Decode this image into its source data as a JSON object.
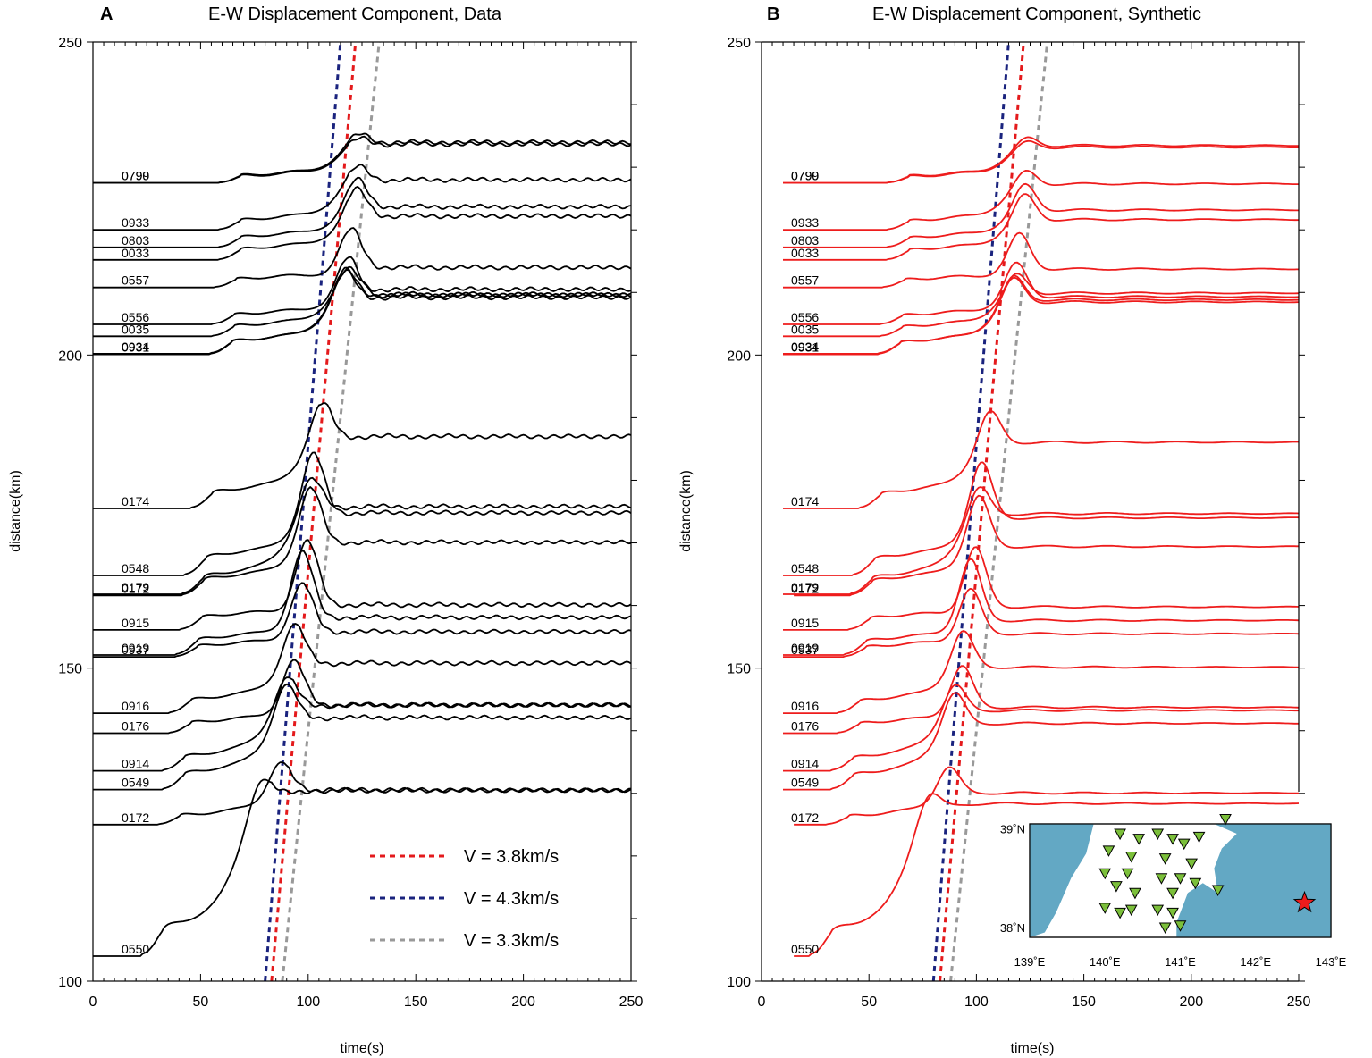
{
  "panels": [
    {
      "id": "A",
      "letter": "A",
      "title": "E-W Displacement Component, Data",
      "xlabel": "time(s)",
      "ylabel": "distance(km)",
      "trace_color": "#000000",
      "show_legend": true,
      "show_map": false
    },
    {
      "id": "B",
      "letter": "B",
      "title": "E-W Displacement Component, Synthetic",
      "xlabel": "time(s)",
      "ylabel": "distance(km)",
      "trace_color": "#ee1c1c",
      "show_legend": false,
      "show_map": true
    }
  ],
  "chart_data": {
    "type": "line",
    "xlim": [
      0,
      250
    ],
    "ylim": [
      100,
      250
    ],
    "xticks": [
      "0",
      "50",
      "100",
      "150",
      "200",
      "250"
    ],
    "yticks": [
      "100",
      "150",
      "200",
      "250"
    ],
    "grid": false,
    "stations": [
      {
        "label": "0790",
        "dist": 227.5,
        "arrival": 58,
        "amp": 8.5,
        "final": 6.5
      },
      {
        "label": "0799",
        "dist": 227.5,
        "arrival": 58,
        "amp": 7.8,
        "final": 6.2
      },
      {
        "label": "0933",
        "dist": 220.0,
        "arrival": 58,
        "amp": 11.0,
        "final": 8.0
      },
      {
        "label": "0803",
        "dist": 217.2,
        "arrival": 58,
        "amp": 11.5,
        "final": 6.5
      },
      {
        "label": "0033",
        "dist": 215.2,
        "arrival": 58,
        "amp": 12.0,
        "final": 7.0
      },
      {
        "label": "0557",
        "dist": 210.8,
        "arrival": 56,
        "amp": 9.5,
        "final": 3.2
      },
      {
        "label": "0556",
        "dist": 204.9,
        "arrival": 55,
        "amp": 11.0,
        "final": 4.8
      },
      {
        "label": "0035",
        "dist": 203.0,
        "arrival": 55,
        "amp": 11.5,
        "final": 7.5
      },
      {
        "label": "0934",
        "dist": 200.2,
        "arrival": 54,
        "amp": 14.0,
        "final": 9.0
      },
      {
        "label": "0931",
        "dist": 200.1,
        "arrival": 54,
        "amp": 14.5,
        "final": 9.5
      },
      {
        "label": "0174",
        "dist": 175.5,
        "arrival": 45,
        "amp": 18.0,
        "final": 11.5
      },
      {
        "label": "0548",
        "dist": 164.8,
        "arrival": 42,
        "amp": 20.5,
        "final": 10.0
      },
      {
        "label": "0179",
        "dist": 161.8,
        "arrival": 41,
        "amp": 20.0,
        "final": 14.0
      },
      {
        "label": "0172",
        "dist": 161.6,
        "arrival": 41,
        "amp": 18.0,
        "final": 8.5
      },
      {
        "label": "0915",
        "dist": 156.1,
        "arrival": 40,
        "amp": 14.5,
        "final": 4.0
      },
      {
        "label": "0919",
        "dist": 152.1,
        "arrival": 38,
        "amp": 17.0,
        "final": 6.0
      },
      {
        "label": "0937",
        "dist": 151.8,
        "arrival": 38,
        "amp": 12.0,
        "final": 4.0
      },
      {
        "label": "0916",
        "dist": 142.8,
        "arrival": 35,
        "amp": 15.0,
        "final": 8.0
      },
      {
        "label": "0176",
        "dist": 139.6,
        "arrival": 35,
        "amp": 12.0,
        "final": 4.5
      },
      {
        "label": "0914",
        "dist": 133.6,
        "arrival": 32,
        "amp": 16.0,
        "final": 10.5
      },
      {
        "label": "0549",
        "dist": 130.6,
        "arrival": 32,
        "amp": 18.0,
        "final": 11.5
      },
      {
        "label": "0172",
        "dist": 125.0,
        "arrival": 30,
        "amp": 10.5,
        "final": 5.5
      },
      {
        "label": "0550",
        "dist": 104.0,
        "arrival": 22,
        "amp": 31.0,
        "final": 26.5
      }
    ],
    "velocity_lines": [
      {
        "label": "V = 3.8km/s",
        "color": "#e41a1c",
        "t_at_100": 83,
        "t_at_250": 122
      },
      {
        "label": "V = 4.3km/s",
        "color": "#1a237e",
        "t_at_100": 80,
        "t_at_250": 115
      },
      {
        "label": "V = 3.3km/s",
        "color": "#999999",
        "t_at_100": 88,
        "t_at_250": 133
      }
    ],
    "legend_position": "bottom-right"
  },
  "inset_map": {
    "lat_ticks": [
      "39˚N",
      "38˚N"
    ],
    "lon_ticks": [
      "139˚E",
      "140˚E",
      "141˚E",
      "142˚E",
      "143˚E"
    ],
    "sea_color": "#63a8c4",
    "station_color": "#7bbf3a",
    "epicenter_color": "#ee1c1c",
    "stations": [
      [
        140.2,
        38.95
      ],
      [
        140.45,
        38.9
      ],
      [
        140.05,
        38.78
      ],
      [
        140.35,
        38.72
      ],
      [
        140.0,
        38.55
      ],
      [
        140.3,
        38.55
      ],
      [
        140.15,
        38.42
      ],
      [
        140.4,
        38.35
      ],
      [
        140.0,
        38.2
      ],
      [
        140.2,
        38.15
      ],
      [
        140.35,
        38.18
      ],
      [
        140.7,
        38.95
      ],
      [
        140.9,
        38.9
      ],
      [
        141.05,
        38.85
      ],
      [
        141.25,
        38.92
      ],
      [
        140.8,
        38.7
      ],
      [
        141.15,
        38.65
      ],
      [
        141.0,
        38.5
      ],
      [
        140.75,
        38.5
      ],
      [
        141.2,
        38.45
      ],
      [
        140.9,
        38.35
      ],
      [
        141.5,
        38.38
      ],
      [
        140.7,
        38.18
      ],
      [
        140.9,
        38.15
      ],
      [
        141.0,
        38.02
      ],
      [
        140.8,
        38.0
      ],
      [
        141.6,
        39.1
      ]
    ],
    "epicenter": [
      142.65,
      38.25
    ]
  }
}
